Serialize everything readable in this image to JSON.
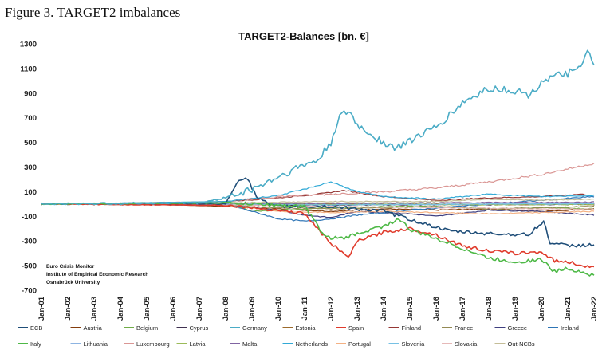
{
  "figure_caption": "Figure 3. TARGET2 imbalances",
  "chart_data": {
    "type": "line",
    "title": "TARGET2-Balances [bn. €]",
    "xlabel": "",
    "ylabel": "",
    "ylim": [
      -700,
      1300
    ],
    "y_ticks": [
      "1300",
      "1100",
      "900",
      "700",
      "500",
      "300",
      "100",
      "-100",
      "-300",
      "-500",
      "-700"
    ],
    "x_ticks": [
      "Jan-01",
      "Jan-02",
      "Jan-03",
      "Jan-04",
      "Jan-05",
      "Jan-06",
      "Jan-07",
      "Jan-08",
      "Jan-09",
      "Jan-10",
      "Jan-11",
      "Jan-12",
      "Jan-13",
      "Jan-14",
      "Jan-15",
      "Jan-16",
      "Jan-17",
      "Jan-18",
      "Jan-19",
      "Jan-20",
      "Jan-21",
      "Jan-22"
    ],
    "grid": false,
    "legend_position": "bottom",
    "annotation": [
      "Euro Crisis Monitor",
      "Institute of Empirical Economic Research",
      "Osnabrück University"
    ],
    "series": [
      {
        "name": "ECB",
        "color": "#1f4e79",
        "x": [
          2001,
          2008,
          2008.5,
          2008.8,
          2009.2,
          2009.8,
          2012,
          2014,
          2016.5,
          2018,
          2019.5,
          2020.1,
          2020.3,
          2021,
          2022
        ],
        "y": [
          0,
          0,
          200,
          215,
          50,
          -20,
          -20,
          -60,
          -220,
          -240,
          -250,
          -140,
          -310,
          -340,
          -330
        ]
      },
      {
        "name": "Austria",
        "color": "#843c0c",
        "x": [
          2001,
          2005,
          2008,
          2010,
          2012,
          2014,
          2016,
          2018,
          2020,
          2022
        ],
        "y": [
          0,
          0,
          -20,
          -40,
          -60,
          -40,
          -50,
          -40,
          -60,
          -40
        ]
      },
      {
        "name": "Belgium",
        "color": "#70ad47",
        "x": [
          2001,
          2005,
          2008,
          2009,
          2011,
          2012,
          2014,
          2016,
          2018,
          2020,
          2022
        ],
        "y": [
          0,
          10,
          20,
          -60,
          -40,
          -30,
          -20,
          -20,
          -40,
          -30,
          -40
        ]
      },
      {
        "name": "Cyprus",
        "color": "#403151",
        "x": [
          2001,
          2008,
          2011,
          2013,
          2016,
          2020,
          2022
        ],
        "y": [
          0,
          0,
          -10,
          -8,
          -5,
          -3,
          -2
        ]
      },
      {
        "name": "Germany",
        "color": "#4bacc6",
        "x": [
          2001,
          2007,
          2008,
          2009,
          2010,
          2011,
          2011.5,
          2012,
          2012.3,
          2012.7,
          2013,
          2014,
          2014.5,
          2015,
          2016,
          2017,
          2018,
          2019,
          2019.6,
          2020,
          2021,
          2021.5,
          2021.8,
          2022
        ],
        "y": [
          0,
          10,
          50,
          120,
          220,
          320,
          350,
          500,
          700,
          750,
          640,
          500,
          450,
          520,
          620,
          820,
          940,
          920,
          880,
          1000,
          1060,
          1100,
          1250,
          1140
        ]
      },
      {
        "name": "Estonia",
        "color": "#9c6a2b",
        "x": [
          2001,
          2011,
          2015,
          2020,
          2022
        ],
        "y": [
          0,
          0,
          -2,
          -4,
          -3
        ]
      },
      {
        "name": "Spain",
        "color": "#e03b2c",
        "x": [
          2001,
          2008,
          2010,
          2011,
          2011.7,
          2012.3,
          2012.7,
          2013,
          2014,
          2015,
          2016,
          2017,
          2018,
          2019,
          2020,
          2020.5,
          2021,
          2022
        ],
        "y": [
          0,
          -10,
          -50,
          -80,
          -250,
          -380,
          -430,
          -300,
          -230,
          -200,
          -250,
          -340,
          -380,
          -400,
          -390,
          -460,
          -470,
          -520
        ]
      },
      {
        "name": "Finland",
        "color": "#953735",
        "x": [
          2001,
          2006,
          2008,
          2010,
          2011.5,
          2012.5,
          2014,
          2016,
          2018,
          2020,
          2021.5,
          2022
        ],
        "y": [
          0,
          10,
          20,
          50,
          80,
          110,
          60,
          30,
          50,
          60,
          80,
          70
        ]
      },
      {
        "name": "France",
        "color": "#948a54",
        "x": [
          2001,
          2006,
          2008,
          2010,
          2012,
          2014,
          2016,
          2018,
          2020,
          2022
        ],
        "y": [
          0,
          0,
          -10,
          -30,
          -40,
          -30,
          -20,
          -40,
          -30,
          -20
        ]
      },
      {
        "name": "Greece",
        "color": "#3f3f7f",
        "x": [
          2001,
          2008,
          2010,
          2011,
          2012,
          2013,
          2015,
          2016,
          2018,
          2020,
          2022
        ],
        "y": [
          0,
          -10,
          -50,
          -90,
          -110,
          -60,
          -80,
          -100,
          -50,
          -60,
          -90
        ]
      },
      {
        "name": "Ireland",
        "color": "#2e75b6",
        "x": [
          2001,
          2008,
          2010,
          2011,
          2012,
          2013,
          2015,
          2018,
          2020,
          2022
        ],
        "y": [
          0,
          0,
          -120,
          -140,
          -120,
          -90,
          -50,
          0,
          30,
          60
        ]
      },
      {
        "name": "Italy",
        "color": "#4eb947",
        "x": [
          2001,
          2008,
          2011,
          2011.8,
          2012.5,
          2013,
          2014,
          2014.6,
          2015,
          2016,
          2017,
          2018,
          2019,
          2020,
          2020.5,
          2021,
          2022
        ],
        "y": [
          0,
          10,
          -20,
          -270,
          -280,
          -240,
          -180,
          -120,
          -210,
          -280,
          -360,
          -440,
          -470,
          -450,
          -550,
          -520,
          -580
        ]
      },
      {
        "name": "Lithuania",
        "color": "#8db4e2",
        "x": [
          2001,
          2015,
          2018,
          2022
        ],
        "y": [
          0,
          -5,
          0,
          5
        ]
      },
      {
        "name": "Luxembourg",
        "color": "#da9694",
        "x": [
          2001,
          2008,
          2010,
          2012,
          2014,
          2016,
          2018,
          2020,
          2022
        ],
        "y": [
          0,
          20,
          60,
          80,
          100,
          130,
          180,
          240,
          330
        ]
      },
      {
        "name": "Latvia",
        "color": "#9bbb59",
        "x": [
          2001,
          2014,
          2018,
          2022
        ],
        "y": [
          0,
          -3,
          -5,
          -3
        ]
      },
      {
        "name": "Malta",
        "color": "#8064a2",
        "x": [
          2001,
          2008,
          2012,
          2016,
          2022
        ],
        "y": [
          0,
          -2,
          5,
          10,
          15
        ]
      },
      {
        "name": "Netherlands",
        "color": "#31a9d6",
        "x": [
          2001,
          2008,
          2010,
          2011,
          2012,
          2013,
          2014,
          2016,
          2018,
          2020,
          2022
        ],
        "y": [
          0,
          20,
          70,
          120,
          180,
          100,
          60,
          40,
          80,
          60,
          70
        ]
      },
      {
        "name": "Portugal",
        "color": "#f4b183",
        "x": [
          2001,
          2008,
          2010,
          2012,
          2014,
          2016,
          2018,
          2020,
          2022
        ],
        "y": [
          0,
          -10,
          -60,
          -70,
          -60,
          -70,
          -80,
          -70,
          -60
        ]
      },
      {
        "name": "Slovenia",
        "color": "#77c1e4",
        "x": [
          2001,
          2008,
          2012,
          2016,
          2022
        ],
        "y": [
          0,
          -2,
          -5,
          -3,
          2
        ]
      },
      {
        "name": "Slovakia",
        "color": "#e6b9b8",
        "x": [
          2001,
          2009,
          2012,
          2016,
          2020,
          2022
        ],
        "y": [
          0,
          -10,
          -20,
          -30,
          -40,
          -40
        ]
      },
      {
        "name": "Out-NCBs",
        "color": "#c4bd97",
        "x": [
          2001,
          2008,
          2012,
          2016,
          2018,
          2020,
          2022
        ],
        "y": [
          0,
          10,
          20,
          20,
          40,
          30,
          40
        ]
      }
    ]
  }
}
